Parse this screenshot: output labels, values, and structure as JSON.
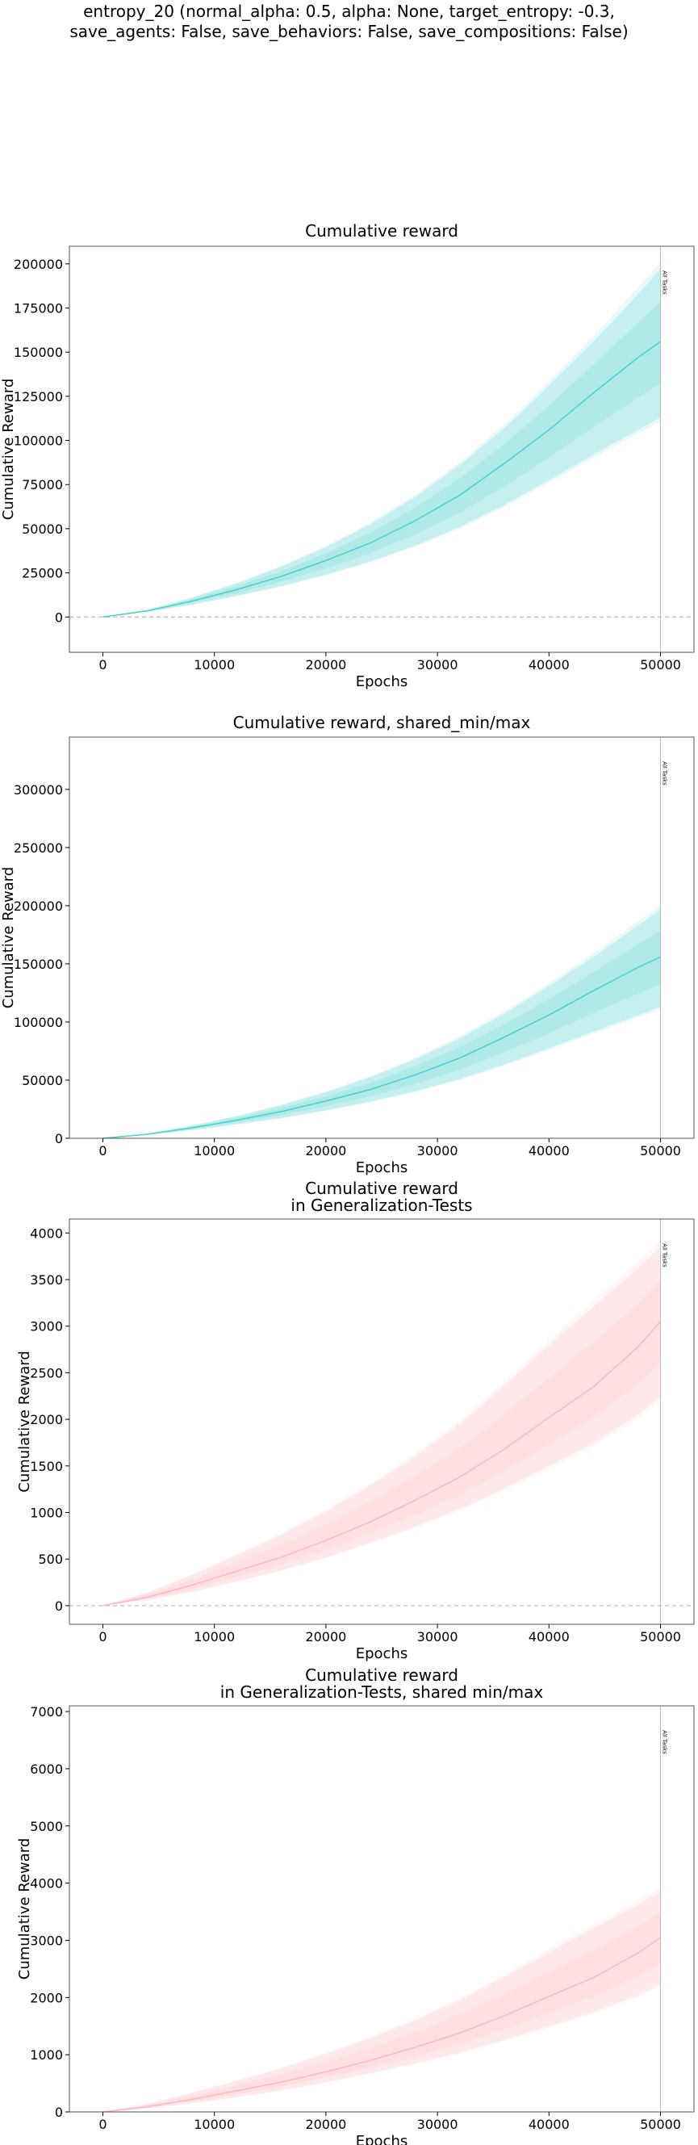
{
  "suptitle": [
    "entropy_20 (normal_alpha: 0.5, alpha: None, target_entropy: -0.3,",
    "save_agents: False, save_behaviors: False, save_compositions: False)"
  ],
  "colors": {
    "train": "#48d1cc",
    "generalization": "#ffb6c1",
    "zero_line": "#bbbbbb",
    "vline": "#bbbbbb"
  },
  "chart_data": [
    {
      "type": "line",
      "title": [
        "Cumulative reward"
      ],
      "xlabel": "Epochs",
      "ylabel": "Cumulative Reward",
      "xlim": [
        -3000,
        53000
      ],
      "ylim": [
        -20000,
        210000
      ],
      "xticks": [
        0,
        10000,
        20000,
        30000,
        40000,
        50000
      ],
      "yticks": [
        0,
        25000,
        50000,
        75000,
        100000,
        125000,
        150000,
        175000,
        200000
      ],
      "vline": {
        "x": 50000,
        "label": "All Tasks"
      },
      "color": "train",
      "x": [
        0,
        4000,
        8000,
        12000,
        16000,
        20000,
        24000,
        28000,
        32000,
        36000,
        40000,
        44000,
        48000,
        50000
      ],
      "mean": [
        0,
        3500,
        9000,
        15500,
        23000,
        32000,
        42000,
        54500,
        69000,
        87000,
        106000,
        127000,
        147000,
        156000
      ],
      "lower": [
        0,
        3000,
        7000,
        12000,
        17500,
        24000,
        31500,
        40500,
        51000,
        63500,
        77500,
        92000,
        106000,
        113000
      ],
      "upper": [
        0,
        4000,
        11000,
        19000,
        28500,
        39500,
        52500,
        68000,
        86000,
        107000,
        131000,
        156000,
        183000,
        197000
      ]
    },
    {
      "type": "line",
      "title": [
        "Cumulative reward, shared_min/max"
      ],
      "xlabel": "Epochs",
      "ylabel": "Cumulative Reward",
      "xlim": [
        -3000,
        53000
      ],
      "ylim": [
        0,
        345000
      ],
      "xticks": [
        0,
        10000,
        20000,
        30000,
        40000,
        50000
      ],
      "yticks": [
        0,
        50000,
        100000,
        150000,
        200000,
        250000,
        300000
      ],
      "vline": {
        "x": 50000,
        "label": "All Tasks"
      },
      "color": "train",
      "x": [
        0,
        4000,
        8000,
        12000,
        16000,
        20000,
        24000,
        28000,
        32000,
        36000,
        40000,
        44000,
        48000,
        50000
      ],
      "mean": [
        0,
        3500,
        9000,
        15500,
        23000,
        32000,
        42000,
        54500,
        69000,
        87000,
        106000,
        127000,
        147000,
        156000
      ],
      "lower": [
        0,
        3000,
        7000,
        12000,
        17500,
        24000,
        31500,
        40500,
        51000,
        63500,
        77500,
        92000,
        106000,
        113000
      ],
      "upper": [
        0,
        4000,
        11000,
        19000,
        28500,
        39500,
        52500,
        68000,
        86000,
        107000,
        131000,
        156000,
        183000,
        197000
      ]
    },
    {
      "type": "line",
      "title": [
        "Cumulative reward",
        "in Generalization-Tests"
      ],
      "xlabel": "Epochs",
      "ylabel": "Cumulative Reward",
      "xlim": [
        -3000,
        53000
      ],
      "ylim": [
        -200,
        4150
      ],
      "xticks": [
        0,
        10000,
        20000,
        30000,
        40000,
        50000
      ],
      "yticks": [
        0,
        500,
        1000,
        1500,
        2000,
        2500,
        3000,
        3500,
        4000
      ],
      "vline": {
        "x": 50000,
        "label": "All Tasks"
      },
      "color": "generalization",
      "x": [
        0,
        4000,
        8000,
        12000,
        16000,
        20000,
        24000,
        28000,
        32000,
        36000,
        40000,
        44000,
        48000,
        50000
      ],
      "mean": [
        0,
        90,
        220,
        370,
        520,
        700,
        900,
        1130,
        1380,
        1680,
        2020,
        2350,
        2780,
        3050
      ],
      "lower": [
        0,
        60,
        150,
        260,
        380,
        520,
        680,
        850,
        1040,
        1260,
        1500,
        1750,
        2050,
        2250
      ],
      "upper": [
        0,
        140,
        330,
        540,
        760,
        1010,
        1290,
        1600,
        1950,
        2360,
        2790,
        3210,
        3620,
        3850
      ]
    },
    {
      "type": "line",
      "title": [
        "Cumulative reward",
        "in Generalization-Tests, shared min/max"
      ],
      "xlabel": "Epochs",
      "ylabel": "Cumulative Reward",
      "xlim": [
        -3000,
        53000
      ],
      "ylim": [
        0,
        7100
      ],
      "xticks": [
        0,
        10000,
        20000,
        30000,
        40000,
        50000
      ],
      "yticks": [
        0,
        1000,
        2000,
        3000,
        4000,
        5000,
        6000,
        7000
      ],
      "vline": {
        "x": 50000,
        "label": "All Tasks"
      },
      "color": "generalization",
      "x": [
        0,
        4000,
        8000,
        12000,
        16000,
        20000,
        24000,
        28000,
        32000,
        36000,
        40000,
        44000,
        48000,
        50000
      ],
      "mean": [
        0,
        90,
        220,
        370,
        520,
        700,
        900,
        1130,
        1380,
        1680,
        2020,
        2350,
        2780,
        3050
      ],
      "lower": [
        0,
        60,
        150,
        260,
        380,
        520,
        680,
        850,
        1040,
        1260,
        1500,
        1750,
        2050,
        2250
      ],
      "upper": [
        0,
        140,
        330,
        540,
        760,
        1010,
        1290,
        1600,
        1950,
        2360,
        2790,
        3210,
        3620,
        3850
      ]
    }
  ]
}
